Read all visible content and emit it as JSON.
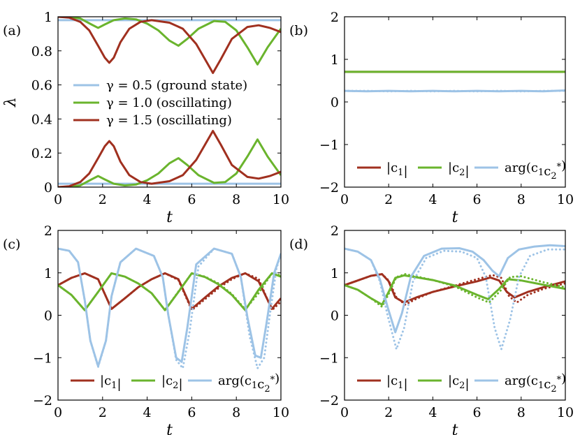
{
  "colors": {
    "blue": "#9dc3e6",
    "green": "#6ab42d",
    "red": "#a0301f"
  },
  "chart_data": [
    {
      "type": "line",
      "panel_label": "(a)",
      "xlabel": "t",
      "ylabel": "λ",
      "xlim": [
        0,
        10
      ],
      "ylim": [
        0,
        1
      ],
      "xticks": [
        "0",
        "2",
        "4",
        "6",
        "8",
        "10"
      ],
      "yticks": [
        "0",
        "0.2",
        "0.4",
        "0.6",
        "0.8",
        "1"
      ],
      "ytick_values": [
        0,
        0.2,
        0.4,
        0.6,
        0.8,
        1
      ],
      "legend_position": "middle-left",
      "series": [
        {
          "name": "γ = 0.5 (ground state)",
          "color": "blue",
          "x": [
            0,
            10
          ],
          "y": [
            0.98,
            0.98
          ]
        },
        {
          "name": "",
          "color": "blue",
          "x": [
            0,
            10
          ],
          "y": [
            0.02,
            0.02
          ]
        },
        {
          "name": "γ = 1.0 (oscillating)",
          "color": "green",
          "x": [
            0,
            0.5,
            1,
            1.5,
            1.8,
            2.1,
            2.5,
            3,
            3.5,
            4,
            4.5,
            5,
            5.4,
            5.8,
            6.3,
            7,
            7.5,
            8,
            8.5,
            8.95,
            9.4,
            10
          ],
          "y": [
            1.0,
            0.998,
            0.99,
            0.955,
            0.935,
            0.955,
            0.98,
            0.99,
            0.985,
            0.96,
            0.92,
            0.86,
            0.83,
            0.87,
            0.93,
            0.975,
            0.97,
            0.92,
            0.82,
            0.72,
            0.82,
            0.93
          ]
        },
        {
          "name": "",
          "color": "green",
          "x": [
            0,
            0.5,
            1,
            1.5,
            1.8,
            2.1,
            2.5,
            3,
            3.5,
            4,
            4.5,
            5,
            5.4,
            5.8,
            6.3,
            7,
            7.5,
            8,
            8.5,
            8.95,
            9.4,
            10
          ],
          "y": [
            0.0,
            0.002,
            0.01,
            0.045,
            0.065,
            0.045,
            0.02,
            0.01,
            0.015,
            0.04,
            0.08,
            0.14,
            0.17,
            0.13,
            0.07,
            0.025,
            0.03,
            0.08,
            0.18,
            0.28,
            0.18,
            0.07
          ]
        },
        {
          "name": "γ = 1.5 (oscillating)",
          "color": "red",
          "x": [
            0,
            0.5,
            1,
            1.4,
            1.8,
            2.1,
            2.3,
            2.5,
            2.8,
            3.2,
            3.7,
            4.2,
            5,
            5.6,
            6.2,
            6.6,
            6.95,
            7.3,
            7.8,
            8.5,
            9,
            9.5,
            10
          ],
          "y": [
            1.0,
            0.995,
            0.97,
            0.92,
            0.83,
            0.76,
            0.73,
            0.76,
            0.85,
            0.93,
            0.97,
            0.98,
            0.965,
            0.93,
            0.84,
            0.75,
            0.67,
            0.75,
            0.87,
            0.94,
            0.95,
            0.935,
            0.91
          ]
        },
        {
          "name": "",
          "color": "red",
          "x": [
            0,
            0.5,
            1,
            1.4,
            1.8,
            2.1,
            2.3,
            2.5,
            2.8,
            3.2,
            3.7,
            4.2,
            5,
            5.6,
            6.2,
            6.6,
            6.95,
            7.3,
            7.8,
            8.5,
            9,
            9.5,
            10
          ],
          "y": [
            0.0,
            0.005,
            0.03,
            0.08,
            0.17,
            0.24,
            0.27,
            0.24,
            0.15,
            0.07,
            0.03,
            0.02,
            0.035,
            0.07,
            0.16,
            0.25,
            0.33,
            0.25,
            0.13,
            0.06,
            0.05,
            0.065,
            0.09
          ]
        }
      ]
    },
    {
      "type": "line",
      "panel_label": "(b)",
      "xlabel": "t",
      "ylabel": "",
      "xlim": [
        0,
        10
      ],
      "ylim": [
        -2,
        2
      ],
      "xticks": [
        "0",
        "2",
        "4",
        "6",
        "8",
        "10"
      ],
      "yticks": [
        "−2",
        "−1",
        "0",
        "1",
        "2"
      ],
      "ytick_values": [
        -2,
        -1,
        0,
        1,
        2
      ],
      "legend_position": "bottom",
      "legend": [
        "|c1|",
        "|c2|",
        "arg(c1c2*)"
      ],
      "series": [
        {
          "name": "|c1|",
          "color": "red",
          "style": "solid",
          "x": [
            0,
            10
          ],
          "y": [
            0.707,
            0.707
          ]
        },
        {
          "name": "|c2|",
          "color": "green",
          "style": "solid",
          "x": [
            0,
            10
          ],
          "y": [
            0.707,
            0.707
          ]
        },
        {
          "name": "arg(c1c2*)",
          "color": "blue",
          "style": "solid",
          "x": [
            0,
            1,
            2,
            3,
            4,
            5,
            6,
            7,
            8,
            9,
            10
          ],
          "y": [
            0.26,
            0.25,
            0.26,
            0.25,
            0.26,
            0.25,
            0.26,
            0.25,
            0.26,
            0.25,
            0.27
          ]
        },
        {
          "name": "",
          "color": "blue",
          "style": "dotted",
          "x": [
            0,
            1,
            2,
            3,
            4,
            5,
            6,
            7,
            8,
            9,
            10
          ],
          "y": [
            0.26,
            0.26,
            0.25,
            0.26,
            0.25,
            0.26,
            0.25,
            0.26,
            0.25,
            0.26,
            0.26
          ]
        }
      ]
    },
    {
      "type": "line",
      "panel_label": "(c)",
      "xlabel": "t",
      "ylabel": "",
      "xlim": [
        0,
        10
      ],
      "ylim": [
        -2,
        2
      ],
      "xticks": [
        "0",
        "2",
        "4",
        "6",
        "8",
        "10"
      ],
      "yticks": [
        "−2",
        "−1",
        "0",
        "1",
        "2"
      ],
      "ytick_values": [
        -2,
        -1,
        0,
        1,
        2
      ],
      "legend_position": "bottom",
      "legend": [
        "|c1|",
        "|c2|",
        "arg(c1c2*)"
      ],
      "series": [
        {
          "name": "|c1|",
          "color": "red",
          "style": "solid",
          "x": [
            0,
            0.6,
            1.2,
            1.8,
            2.4,
            3.0,
            3.6,
            4.2,
            4.8,
            5.4,
            6.0,
            6.6,
            7.2,
            7.8,
            8.4,
            9.0,
            9.6,
            10
          ],
          "y": [
            0.71,
            0.88,
            0.99,
            0.85,
            0.15,
            0.4,
            0.66,
            0.85,
            0.99,
            0.85,
            0.15,
            0.42,
            0.68,
            0.88,
            0.99,
            0.8,
            0.15,
            0.4
          ]
        },
        {
          "name": "",
          "color": "red",
          "style": "dotted",
          "x": [
            0,
            0.6,
            1.2,
            1.8,
            2.4,
            3.0,
            3.6,
            4.2,
            4.8,
            5.4,
            6.0,
            6.6,
            7.2,
            7.8,
            8.4,
            9.0,
            9.6,
            10
          ],
          "y": [
            0.71,
            0.88,
            0.99,
            0.85,
            0.15,
            0.4,
            0.66,
            0.85,
            0.99,
            0.83,
            0.12,
            0.38,
            0.64,
            0.85,
            0.99,
            0.86,
            0.12,
            0.32
          ]
        },
        {
          "name": "|c2|",
          "color": "green",
          "style": "solid",
          "x": [
            0,
            0.6,
            1.2,
            1.8,
            2.4,
            3.0,
            3.6,
            4.2,
            4.8,
            5.4,
            6.0,
            6.6,
            7.2,
            7.8,
            8.4,
            9.0,
            9.6,
            10
          ],
          "y": [
            0.71,
            0.48,
            0.12,
            0.55,
            0.99,
            0.91,
            0.75,
            0.52,
            0.12,
            0.55,
            0.99,
            0.9,
            0.73,
            0.48,
            0.12,
            0.6,
            0.99,
            0.91
          ]
        },
        {
          "name": "",
          "color": "green",
          "style": "dotted",
          "x": [
            0,
            0.6,
            1.2,
            1.8,
            2.4,
            3.0,
            3.6,
            4.2,
            4.8,
            5.4,
            6.0,
            6.6,
            7.2,
            7.8,
            8.4,
            9.0,
            9.6,
            10
          ],
          "y": [
            0.71,
            0.48,
            0.12,
            0.55,
            0.99,
            0.91,
            0.75,
            0.52,
            0.12,
            0.56,
            0.99,
            0.91,
            0.75,
            0.5,
            0.14,
            0.52,
            0.99,
            0.94
          ]
        },
        {
          "name": "arg(c1c2*)",
          "color": "blue",
          "style": "solid",
          "x": [
            0,
            0.5,
            0.9,
            1.2,
            1.45,
            1.8,
            2.15,
            2.4,
            2.8,
            3.5,
            4.3,
            4.7,
            4.95,
            5.3,
            5.55,
            5.8,
            6.2,
            7,
            7.8,
            8.2,
            8.5,
            8.85,
            9.1,
            9.35,
            9.7,
            10
          ],
          "y": [
            1.57,
            1.52,
            1.25,
            0.35,
            -0.6,
            -1.2,
            -0.6,
            0.45,
            1.25,
            1.57,
            1.4,
            0.9,
            0.0,
            -1.0,
            -1.1,
            -0.3,
            1.2,
            1.57,
            1.45,
            0.9,
            -0.05,
            -0.95,
            -1.0,
            -0.2,
            1.0,
            1.45
          ]
        },
        {
          "name": "",
          "color": "blue",
          "style": "dotted",
          "x": [
            0,
            0.5,
            0.9,
            1.2,
            1.45,
            1.8,
            2.15,
            2.4,
            2.8,
            3.5,
            4.3,
            4.7,
            4.95,
            5.3,
            5.6,
            5.9,
            6.3,
            7,
            7.8,
            8.2,
            8.6,
            8.95,
            9.25,
            9.5,
            9.8,
            10
          ],
          "y": [
            1.57,
            1.52,
            1.25,
            0.35,
            -0.6,
            -1.22,
            -0.6,
            0.45,
            1.25,
            1.57,
            1.4,
            0.9,
            0.0,
            -1.05,
            -1.25,
            -0.4,
            1.15,
            1.57,
            1.45,
            0.9,
            -0.5,
            -1.25,
            -1.0,
            0.0,
            1.1,
            1.45
          ]
        }
      ]
    },
    {
      "type": "line",
      "panel_label": "(d)",
      "xlabel": "t",
      "ylabel": "",
      "xlim": [
        0,
        10
      ],
      "ylim": [
        -2,
        2
      ],
      "xticks": [
        "0",
        "2",
        "4",
        "6",
        "8",
        "10"
      ],
      "yticks": [
        "−2",
        "−1",
        "0",
        "1",
        "2"
      ],
      "ytick_values": [
        -2,
        -1,
        0,
        1,
        2
      ],
      "legend_position": "bottom",
      "legend": [
        "|c1|",
        "|c2|",
        "arg(c1c2*)"
      ],
      "series": [
        {
          "name": "|c1|",
          "color": "red",
          "style": "solid",
          "x": [
            0,
            0.6,
            1.2,
            1.7,
            2.0,
            2.3,
            2.7,
            3.3,
            4,
            5,
            6,
            6.6,
            7,
            7.35,
            7.7,
            8.3,
            9,
            10
          ],
          "y": [
            0.71,
            0.82,
            0.93,
            0.97,
            0.8,
            0.42,
            0.3,
            0.43,
            0.55,
            0.68,
            0.8,
            0.89,
            0.82,
            0.55,
            0.42,
            0.55,
            0.66,
            0.8
          ]
        },
        {
          "name": "",
          "color": "red",
          "style": "dotted",
          "x": [
            0,
            0.6,
            1.2,
            1.7,
            2.0,
            2.35,
            2.75,
            3.3,
            4,
            5,
            6,
            6.7,
            7.1,
            7.45,
            7.8,
            8.3,
            9,
            10
          ],
          "y": [
            0.71,
            0.82,
            0.93,
            0.97,
            0.82,
            0.42,
            0.25,
            0.4,
            0.55,
            0.7,
            0.85,
            0.95,
            0.88,
            0.45,
            0.3,
            0.48,
            0.62,
            0.75
          ]
        },
        {
          "name": "|c2|",
          "color": "green",
          "style": "solid",
          "x": [
            0,
            0.6,
            1.2,
            1.7,
            2.0,
            2.3,
            2.7,
            3.3,
            4,
            5,
            6,
            6.5,
            7,
            7.4,
            8,
            9,
            10
          ],
          "y": [
            0.71,
            0.6,
            0.4,
            0.25,
            0.55,
            0.88,
            0.94,
            0.89,
            0.83,
            0.7,
            0.48,
            0.38,
            0.62,
            0.85,
            0.82,
            0.72,
            0.62
          ]
        },
        {
          "name": "",
          "color": "green",
          "style": "dotted",
          "x": [
            0,
            0.6,
            1.2,
            1.7,
            2.0,
            2.35,
            2.75,
            3.3,
            4,
            5,
            6,
            6.55,
            7.1,
            7.5,
            8,
            9,
            10
          ],
          "y": [
            0.71,
            0.6,
            0.4,
            0.2,
            0.5,
            0.9,
            0.97,
            0.91,
            0.83,
            0.68,
            0.42,
            0.3,
            0.6,
            0.9,
            0.92,
            0.78,
            0.66
          ]
        },
        {
          "name": "arg(c1c2*)",
          "color": "blue",
          "style": "solid",
          "x": [
            0,
            0.6,
            1.2,
            1.6,
            1.95,
            2.3,
            2.6,
            3.0,
            3.6,
            4.4,
            5.2,
            5.8,
            6.3,
            6.7,
            7.0,
            7.4,
            7.9,
            8.6,
            9.3,
            10
          ],
          "y": [
            1.57,
            1.5,
            1.3,
            0.85,
            0.2,
            -0.4,
            0.05,
            0.9,
            1.4,
            1.57,
            1.58,
            1.5,
            1.3,
            1.05,
            0.92,
            1.35,
            1.55,
            1.62,
            1.65,
            1.63
          ]
        },
        {
          "name": "",
          "color": "blue",
          "style": "dotted",
          "x": [
            0,
            0.6,
            1.2,
            1.6,
            1.95,
            2.35,
            2.7,
            3.1,
            3.7,
            4.5,
            5.3,
            6.0,
            6.4,
            6.8,
            7.1,
            7.5,
            7.9,
            8.4,
            9.2,
            10
          ],
          "y": [
            1.57,
            1.5,
            1.3,
            0.8,
            0.0,
            -0.8,
            -0.3,
            0.8,
            1.35,
            1.52,
            1.5,
            1.35,
            0.9,
            -0.3,
            -0.8,
            -0.1,
            0.9,
            1.4,
            1.55,
            1.55
          ]
        }
      ]
    }
  ]
}
